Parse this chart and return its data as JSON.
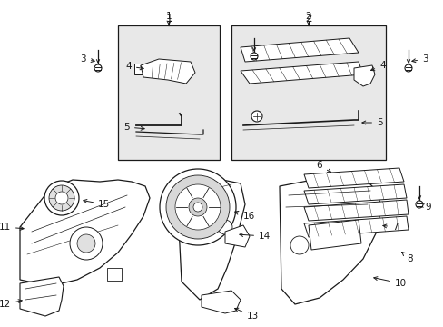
{
  "bg_color": "#ffffff",
  "line_color": "#1a1a1a",
  "box_fill": "#e8e8e8",
  "fig_w": 4.89,
  "fig_h": 3.6,
  "dpi": 100,
  "annot_fontsize": 7.5,
  "label_fontsize": 8.5
}
